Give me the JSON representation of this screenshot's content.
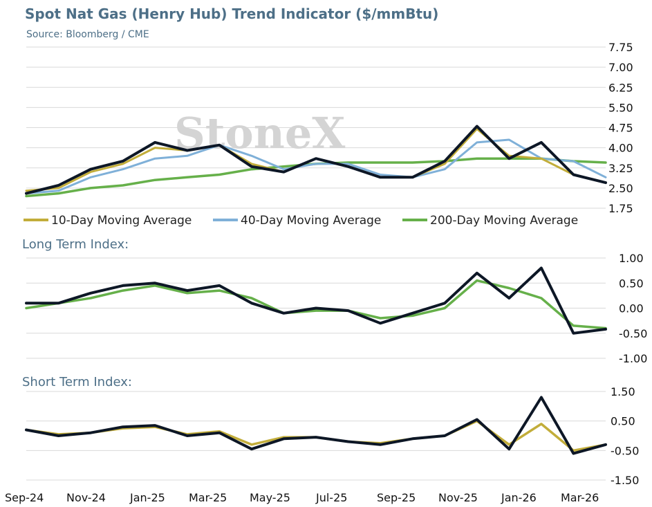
{
  "title": "Spot Nat Gas (Henry Hub) Trend Indicator ($/mmBtu)",
  "source": "Source: Bloomberg / CME",
  "watermark": "StoneX",
  "colors": {
    "spot": "#0d1726",
    "ma10": "#c2ad3a",
    "ma40": "#7fb0d8",
    "ma200": "#66b04a",
    "title": "#4d6f87"
  },
  "x_axis": {
    "tick_labels": [
      "Sep-24",
      "Nov-24",
      "Jan-25",
      "Mar-25",
      "May-25",
      "Jul-25",
      "Sep-25",
      "Nov-25",
      "Jan-26",
      "Mar-26"
    ]
  },
  "legend": [
    "10-Day Moving Average",
    "40-Day Moving Average",
    "200-Day Moving Average"
  ],
  "chart_data": [
    {
      "type": "line",
      "title": "Spot Nat Gas (Henry Hub) Trend Indicator ($/mmBtu)",
      "ylim": [
        1.75,
        7.75
      ],
      "yticks": [
        "7.75",
        "7.00",
        "6.25",
        "5.50",
        "4.75",
        "4.00",
        "3.25",
        "2.50",
        "1.75"
      ],
      "grid": true,
      "legend_position": "bottom",
      "x": [
        "Sep-24",
        "Oct-24",
        "Nov-24",
        "Dec-24",
        "Jan-25",
        "Feb-25",
        "Mar-25",
        "Apr-25",
        "May-25",
        "Jun-25",
        "Jul-25",
        "Aug-25",
        "Sep-25",
        "Oct-25",
        "Nov-25",
        "Dec-25",
        "Jan-26",
        "Feb-26",
        "Mar-26"
      ],
      "series": [
        {
          "name": "Spot",
          "values": [
            2.3,
            2.6,
            3.2,
            3.5,
            4.2,
            3.9,
            4.1,
            3.3,
            3.1,
            3.6,
            3.3,
            2.9,
            2.9,
            3.5,
            4.8,
            3.6,
            4.2,
            3.0,
            2.7
          ]
        },
        {
          "name": "10-Day Moving Average",
          "values": [
            2.4,
            2.5,
            3.1,
            3.4,
            4.0,
            3.9,
            4.1,
            3.4,
            3.1,
            3.6,
            3.3,
            2.9,
            2.9,
            3.4,
            4.7,
            3.7,
            3.6,
            3.0,
            2.7
          ]
        },
        {
          "name": "40-Day Moving Average",
          "values": [
            2.3,
            2.4,
            2.9,
            3.2,
            3.6,
            3.7,
            4.1,
            3.7,
            3.2,
            3.4,
            3.4,
            3.0,
            2.9,
            3.2,
            4.2,
            4.3,
            3.6,
            3.5,
            2.9
          ]
        },
        {
          "name": "200-Day Moving Average",
          "values": [
            2.2,
            2.3,
            2.5,
            2.6,
            2.8,
            2.9,
            3.0,
            3.2,
            3.3,
            3.4,
            3.45,
            3.45,
            3.45,
            3.5,
            3.6,
            3.6,
            3.6,
            3.5,
            3.45
          ]
        }
      ]
    },
    {
      "type": "line",
      "title": "Long Term Index:",
      "ylim": [
        -1.0,
        1.0
      ],
      "yticks": [
        "1.00",
        "0.50",
        "0.00",
        "-0.50",
        "-1.00"
      ],
      "grid": true,
      "x": [
        "Sep-24",
        "Oct-24",
        "Nov-24",
        "Dec-24",
        "Jan-25",
        "Feb-25",
        "Mar-25",
        "Apr-25",
        "May-25",
        "Jun-25",
        "Jul-25",
        "Aug-25",
        "Sep-25",
        "Oct-25",
        "Nov-25",
        "Dec-25",
        "Jan-26",
        "Feb-26",
        "Mar-26"
      ],
      "series": [
        {
          "values": [
            0.1,
            0.1,
            0.3,
            0.45,
            0.5,
            0.35,
            0.45,
            0.1,
            -0.1,
            0.0,
            -0.05,
            -0.3,
            -0.1,
            0.1,
            0.7,
            0.2,
            0.8,
            -0.5,
            -0.42
          ]
        },
        {
          "values": [
            0.0,
            0.1,
            0.2,
            0.35,
            0.45,
            0.3,
            0.35,
            0.2,
            -0.1,
            -0.05,
            -0.05,
            -0.2,
            -0.15,
            0.0,
            0.55,
            0.4,
            0.2,
            -0.35,
            -0.4
          ]
        }
      ]
    },
    {
      "type": "line",
      "title": "Short Term Index:",
      "ylim": [
        -1.5,
        1.5
      ],
      "yticks": [
        "1.50",
        "0.50",
        "-0.50",
        "-1.50"
      ],
      "grid": true,
      "x": [
        "Sep-24",
        "Oct-24",
        "Nov-24",
        "Dec-24",
        "Jan-25",
        "Feb-25",
        "Mar-25",
        "Apr-25",
        "May-25",
        "Jun-25",
        "Jul-25",
        "Aug-25",
        "Sep-25",
        "Oct-25",
        "Nov-25",
        "Dec-25",
        "Jan-26",
        "Feb-26",
        "Mar-26"
      ],
      "series": [
        {
          "values": [
            0.2,
            0.0,
            0.1,
            0.3,
            0.35,
            0.0,
            0.1,
            -0.45,
            -0.1,
            -0.05,
            -0.2,
            -0.3,
            -0.1,
            0.0,
            0.55,
            -0.45,
            1.3,
            -0.6,
            -0.3
          ]
        },
        {
          "values": [
            0.2,
            0.05,
            0.1,
            0.25,
            0.3,
            0.05,
            0.15,
            -0.3,
            -0.05,
            -0.05,
            -0.2,
            -0.25,
            -0.1,
            0.0,
            0.5,
            -0.3,
            0.4,
            -0.5,
            -0.3
          ]
        }
      ]
    }
  ]
}
